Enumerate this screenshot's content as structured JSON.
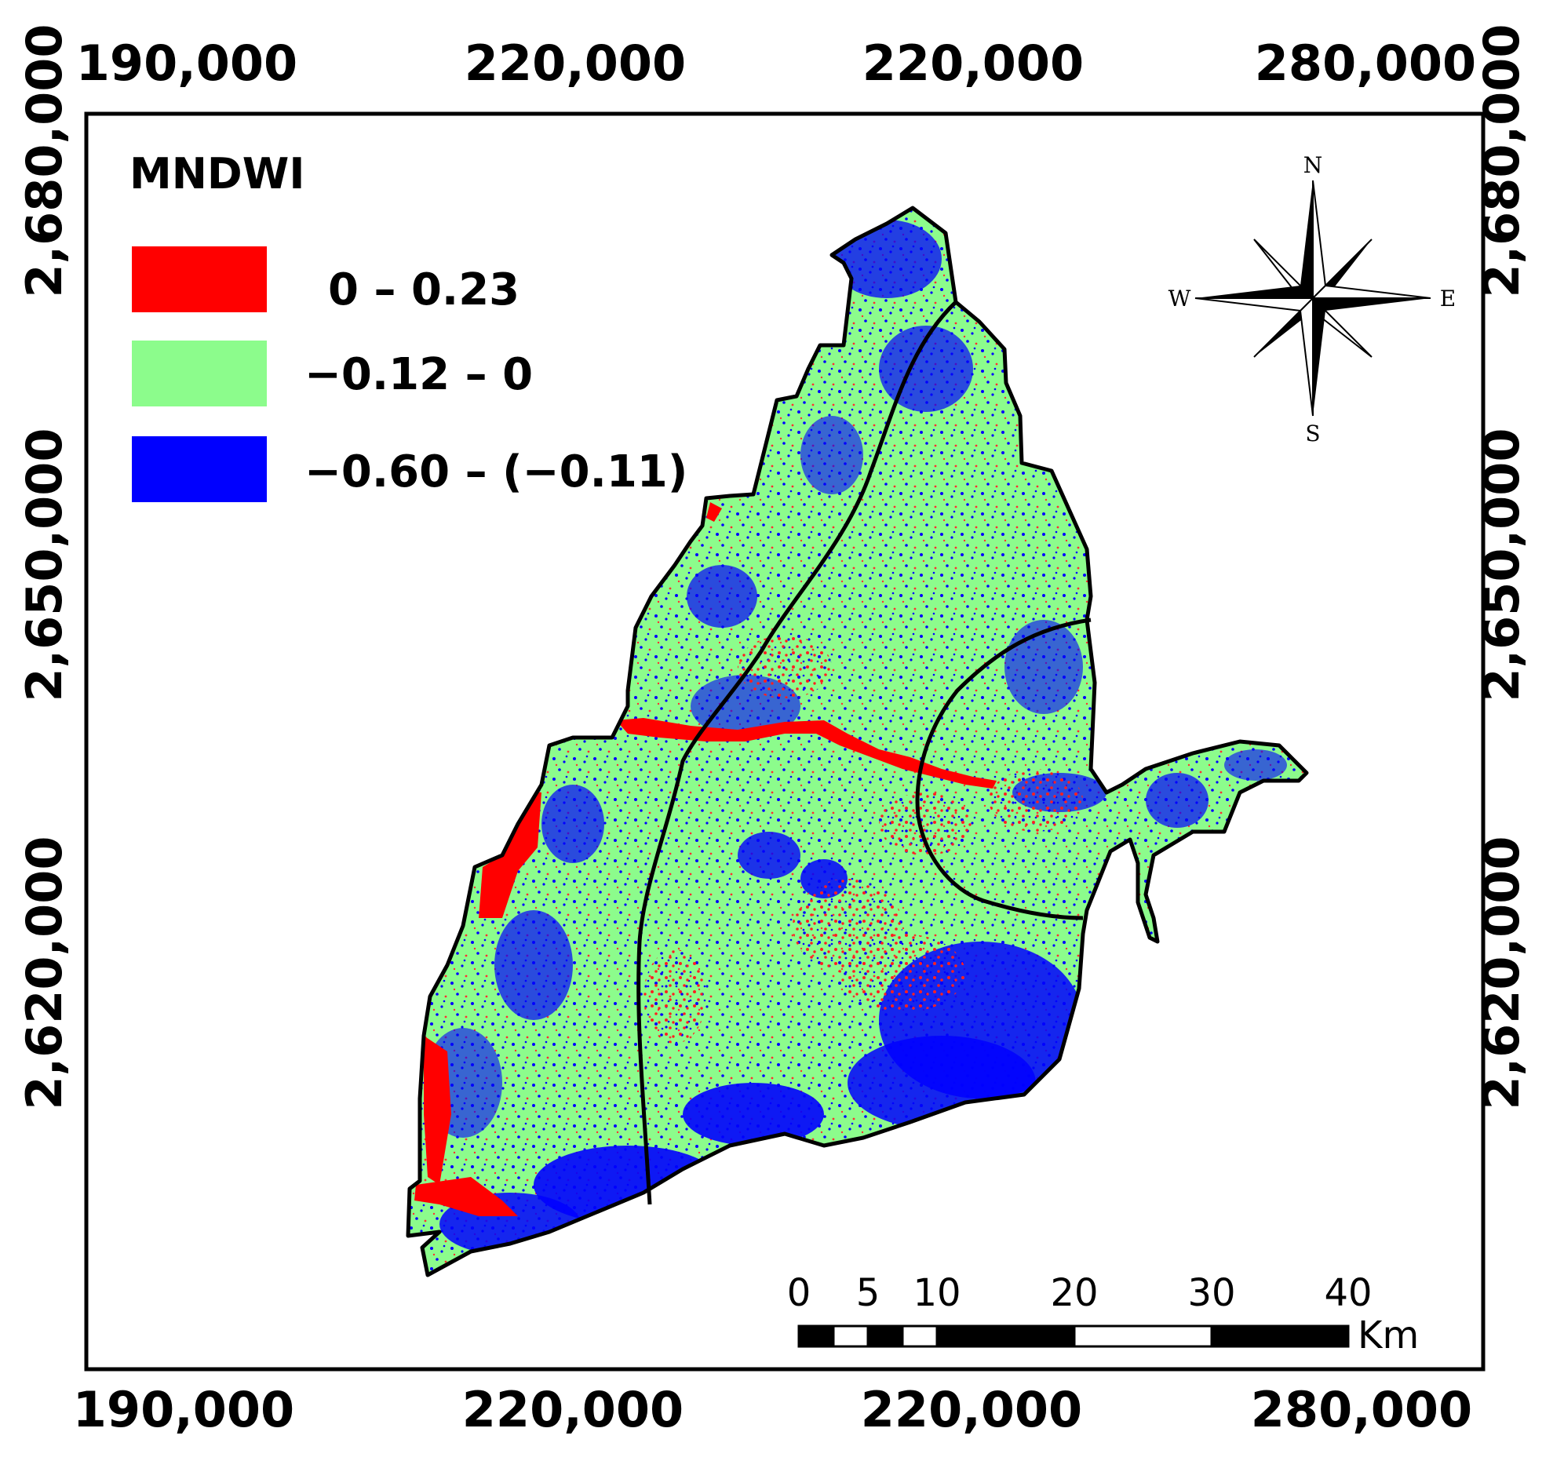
{
  "axes": {
    "x_ticks": [
      "190,000",
      "220,000",
      "220,000",
      "280,000"
    ],
    "y_ticks": [
      "2,680,000",
      "2,650,000",
      "2,620,000"
    ]
  },
  "legend": {
    "title": "MNDWI",
    "items": [
      {
        "label": "0 – 0.23",
        "color": "#ff0000"
      },
      {
        "label": "−0.12 – 0",
        "color": "#8cfc8c"
      },
      {
        "label": "−0.60 – (−0.11)",
        "color": "#0000ff"
      }
    ]
  },
  "compass": {
    "n": "N",
    "s": "S",
    "e": "E",
    "w": "W"
  },
  "scale_bar": {
    "ticks": [
      "0",
      "5",
      "10",
      "20",
      "30",
      "40"
    ],
    "unit": "Km"
  },
  "map_colors": {
    "water": "#ff0000",
    "vegetation": "#8cfc8c",
    "built": "#0000ff",
    "border": "#000000"
  }
}
